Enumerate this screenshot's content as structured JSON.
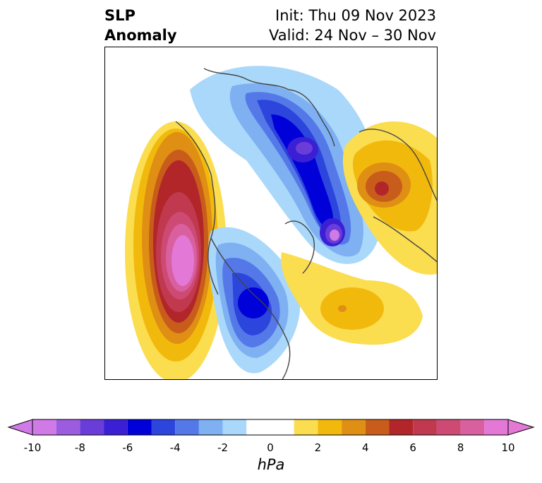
{
  "title": {
    "left_line1": "SLP",
    "left_line2": "Anomaly",
    "right_line1": "Init: Thu 09 Nov 2023",
    "right_line2": "Valid: 24 Nov – 30 Nov"
  },
  "colorbar": {
    "unit": "hPa",
    "tick_labels": [
      "-10",
      "-8",
      "-6",
      "-4",
      "-2",
      "0",
      "2",
      "4",
      "6",
      "8",
      "10"
    ],
    "bins": [
      {
        "range": [
          -10,
          -9
        ],
        "color": "#d07ae8"
      },
      {
        "range": [
          -9,
          -8
        ],
        "color": "#9b5ce0"
      },
      {
        "range": [
          -8,
          -7
        ],
        "color": "#6a3dd8"
      },
      {
        "range": [
          -7,
          -6
        ],
        "color": "#3b1fd4"
      },
      {
        "range": [
          -6,
          -5
        ],
        "color": "#0000d8"
      },
      {
        "range": [
          -5,
          -4
        ],
        "color": "#2c45dc"
      },
      {
        "range": [
          -4,
          -3
        ],
        "color": "#5478e8"
      },
      {
        "range": [
          -3,
          -2
        ],
        "color": "#7eb0f2"
      },
      {
        "range": [
          -2,
          -1
        ],
        "color": "#a9d8fa"
      },
      {
        "range": [
          -1,
          1
        ],
        "color": "#ffffff"
      },
      {
        "range": [
          1,
          2
        ],
        "color": "#fbdd50"
      },
      {
        "range": [
          2,
          3
        ],
        "color": "#f2b90d"
      },
      {
        "range": [
          3,
          4
        ],
        "color": "#df8f14"
      },
      {
        "range": [
          4,
          5
        ],
        "color": "#c85d1b"
      },
      {
        "range": [
          5,
          6
        ],
        "color": "#b2262a"
      },
      {
        "range": [
          6,
          7
        ],
        "color": "#c0394f"
      },
      {
        "range": [
          7,
          8
        ],
        "color": "#cd4a75"
      },
      {
        "range": [
          8,
          9
        ],
        "color": "#d9609f"
      },
      {
        "range": [
          9,
          10
        ],
        "color": "#e378d6"
      }
    ],
    "extend_low_color": "#d07ae8",
    "extend_high_color": "#e378d6"
  }
}
